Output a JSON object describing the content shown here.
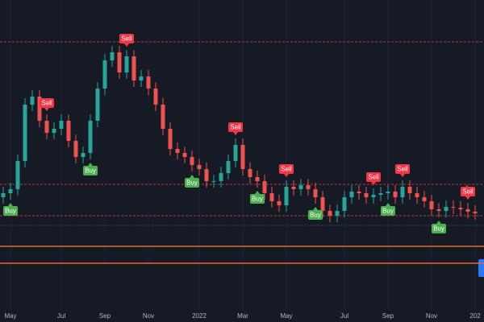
{
  "chart_data": {
    "type": "candlestick",
    "categories": [
      null,
      "May",
      null,
      null,
      null,
      null,
      null,
      null,
      "Jul",
      null,
      null,
      null,
      null,
      null,
      "Sep",
      null,
      null,
      null,
      null,
      null,
      "Nov",
      null,
      null,
      null,
      null,
      null,
      null,
      "2022",
      null,
      null,
      null,
      null,
      null,
      "Mar",
      null,
      null,
      null,
      null,
      null,
      "May",
      null,
      null,
      null,
      null,
      null,
      null,
      null,
      "Jul",
      null,
      null,
      null,
      null,
      null,
      "Sep",
      null,
      null,
      null,
      null,
      null,
      "Nov",
      null,
      null,
      null,
      null,
      null,
      "202"
    ],
    "open": [
      15.5,
      16,
      16.5,
      20,
      27,
      28,
      25,
      23.5,
      24,
      25,
      22.5,
      20.5,
      21,
      25,
      29,
      32.5,
      33.5,
      31,
      33,
      30,
      30.5,
      29,
      27,
      24,
      21.5,
      21,
      20.5,
      19.5,
      19,
      17.5,
      17.5,
      18.5,
      20,
      22,
      19,
      18,
      17.5,
      16,
      15,
      14.5,
      16.8,
      16.5,
      17,
      16.5,
      15.5,
      13.8,
      13.2,
      13.8,
      15.5,
      16.2,
      16,
      15.5,
      15.8,
      16,
      16.2,
      15.5,
      16.8,
      16,
      15.5,
      15,
      14,
      13.8,
      14.3,
      14.2,
      14,
      13.7
    ],
    "high": [
      16.8,
      17.3,
      20.8,
      27.8,
      28.8,
      28.8,
      25.8,
      24.8,
      25.8,
      25.8,
      23.3,
      21.8,
      25.8,
      29.8,
      33.3,
      34.3,
      34.3,
      33.8,
      33.8,
      31.3,
      31.3,
      29.8,
      27.8,
      24.8,
      22.3,
      21.8,
      21.3,
      20.3,
      19.8,
      18.3,
      19.3,
      20.8,
      22.8,
      22.8,
      19.8,
      18.8,
      18.3,
      16.8,
      15.8,
      17.6,
      17.6,
      17.8,
      17.8,
      17.3,
      16.3,
      14.6,
      14.6,
      16.3,
      17,
      17,
      16.8,
      16.6,
      16.8,
      17,
      17,
      17.6,
      17.6,
      16.8,
      16.3,
      15.8,
      14.8,
      15.1,
      15.1,
      15,
      14.8,
      14.5
    ],
    "low": [
      14.7,
      15.2,
      15.7,
      19.2,
      26.2,
      24.2,
      22.7,
      22.7,
      23.2,
      21.7,
      19.7,
      19.7,
      20.2,
      24.2,
      28.2,
      31.7,
      30.2,
      30.2,
      29.2,
      29.2,
      28.2,
      26.2,
      23.2,
      20.7,
      20.2,
      19.7,
      18.7,
      18.2,
      16.7,
      16.7,
      16.7,
      17.7,
      19.2,
      18.2,
      17.2,
      16.7,
      15.2,
      14.2,
      13.7,
      13.7,
      15.7,
      15.7,
      15.7,
      14.7,
      13,
      12.4,
      12.4,
      13,
      14.7,
      15.2,
      14.7,
      14.7,
      15,
      15.2,
      14.7,
      14.7,
      15.2,
      14.7,
      14.2,
      13.2,
      13,
      13,
      13.4,
      13.2,
      12.9,
      12.7
    ],
    "close": [
      16,
      16.5,
      20,
      27,
      28,
      25,
      23.5,
      24,
      25,
      22.5,
      20.5,
      21,
      25,
      29,
      32.5,
      33.5,
      31,
      33,
      30,
      30.5,
      29,
      27,
      24,
      21.5,
      21,
      20.5,
      19.5,
      19,
      17.5,
      17.5,
      18.5,
      20,
      22,
      19,
      18,
      17.5,
      16,
      15,
      14.5,
      16.8,
      16.5,
      17,
      16.5,
      15.5,
      13.8,
      13.2,
      13.8,
      15.5,
      16.2,
      16,
      15.5,
      15.8,
      16,
      16.2,
      15.5,
      16.8,
      16,
      15.5,
      15,
      14,
      13.8,
      14.3,
      14.2,
      14,
      13.7,
      13.5
    ],
    "up_color": "#26a69a",
    "down_color": "#ef5350",
    "ylim": [
      0,
      40
    ],
    "levels": [
      {
        "value": 34.8,
        "color": "#b33a3a",
        "style": "dashed"
      },
      {
        "value": 17.1,
        "color": "#b33a3a",
        "style": "dashed"
      },
      {
        "value": 13.2,
        "color": "#b33a3a",
        "style": "dashed"
      },
      {
        "value": 12,
        "color": "#4a6a7a",
        "style": "dotted"
      },
      {
        "value": 9.4,
        "color": "#e8672a",
        "style": "solid"
      },
      {
        "value": 7.3,
        "color": "#e8672a",
        "style": "solid"
      }
    ],
    "signals": [
      {
        "text": "Buy",
        "at": 1
      },
      {
        "text": "Sell",
        "at": 6
      },
      {
        "text": "Buy",
        "at": 12
      },
      {
        "text": "Sell",
        "at": 17
      },
      {
        "text": "Buy",
        "at": 26
      },
      {
        "text": "Sell",
        "at": 32
      },
      {
        "text": "Buy",
        "at": 35
      },
      {
        "text": "Sell",
        "at": 39
      },
      {
        "text": "Buy",
        "at": 43
      },
      {
        "text": "Sell",
        "at": 51
      },
      {
        "text": "Buy",
        "at": 53
      },
      {
        "text": "Sell",
        "at": 55
      },
      {
        "text": "Buy",
        "at": 60
      },
      {
        "text": "Sell",
        "at": 64
      }
    ],
    "buy_color": "#4caf50",
    "sell_color": "#f23645"
  }
}
